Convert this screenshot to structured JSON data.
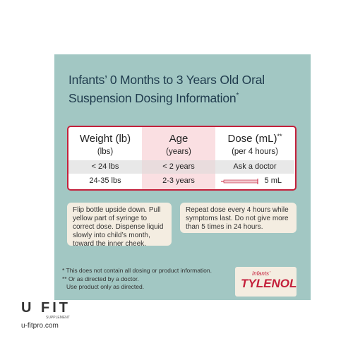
{
  "panel": {
    "title_lines": [
      "Infants’ 0 Months to 3 Years Old Oral",
      "Suspension Dosing Information"
    ],
    "title_mark": "*"
  },
  "table": {
    "headers": [
      {
        "label": "Weight (lb)",
        "sub": "(lbs)"
      },
      {
        "label": "Age",
        "sub": "(years)"
      },
      {
        "label": "Dose (mL)",
        "mark": "**",
        "sub": "(per 4 hours)"
      }
    ],
    "rows": [
      [
        "< 24 lbs",
        "< 2 years",
        "Ask a doctor"
      ],
      [
        "24-35 lbs",
        "2-3 years",
        "5 mL"
      ]
    ]
  },
  "notes": [
    "Flip bottle upside down. Pull yellow part of syringe to correct dose. Dispense liquid slowly into child’s month, toward the inner cheek.",
    "Repeat dose every 4 hours while symptoms last. Do not give more than 5 times in 24 hours."
  ],
  "footnotes": [
    "* This does not contain all dosing or product information.",
    "** Or as directed by a doctor.",
    "Use product only as directed."
  ],
  "brand": {
    "small": "Infants’",
    "name": "TYLENOL"
  },
  "watermark": {
    "logo": "U FIT",
    "tagline": "SUPPLEMENT",
    "url": "u-fitpro.com"
  }
}
